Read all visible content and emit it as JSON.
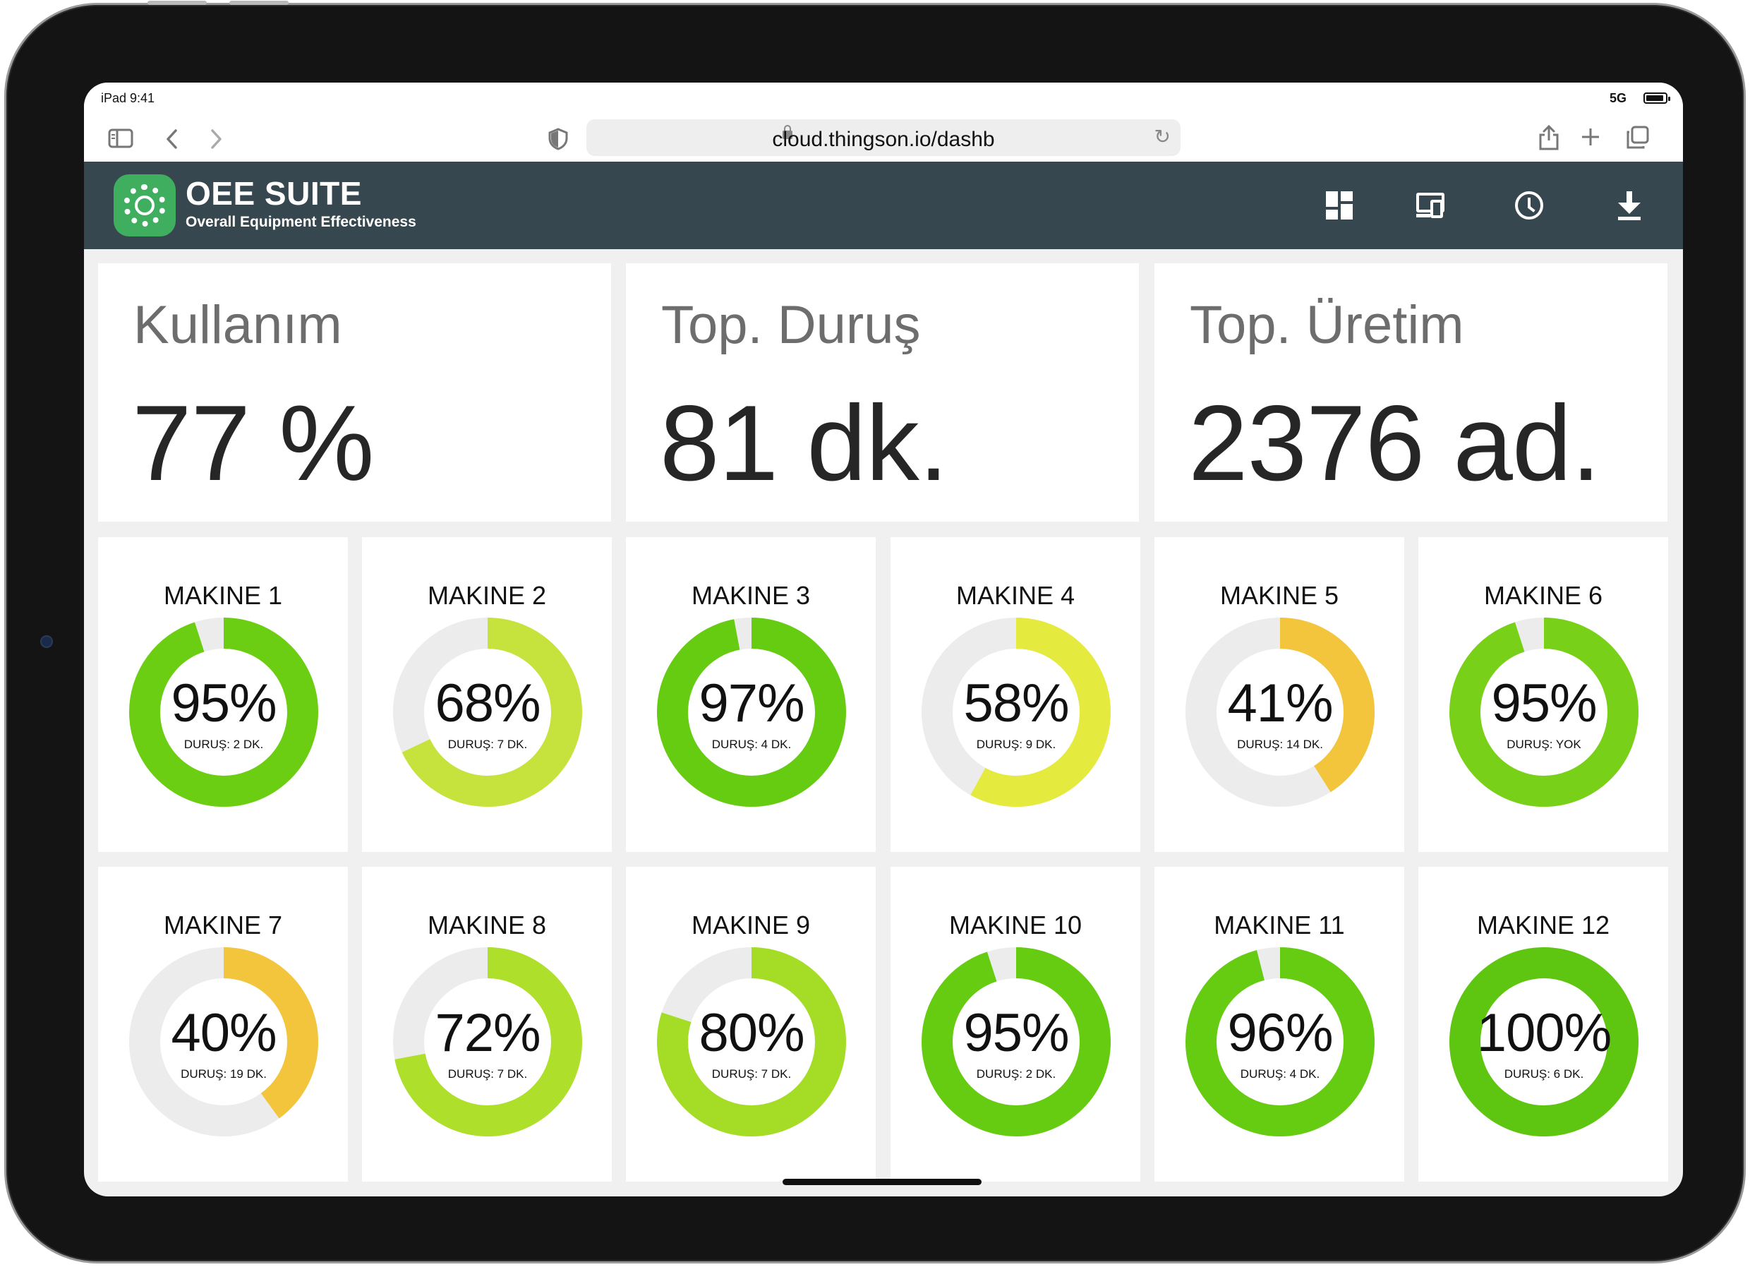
{
  "status_bar": {
    "time": "iPad 9:41",
    "signal": "5G"
  },
  "browser": {
    "url": "cloud.thingson.io/dashb",
    "icons": [
      "sidebar-icon",
      "back-icon",
      "forward-icon",
      "shield-icon",
      "lock-icon",
      "reload-icon",
      "share-icon",
      "new-tab-icon",
      "tabs-icon"
    ]
  },
  "app": {
    "title": "OEE SUITE",
    "subtitle": "Overall Equipment Effectiveness",
    "accent": "#37474f",
    "logo_color": "#3fae5f",
    "toolbar_icons": [
      "dashboard-icon",
      "devices-icon",
      "history-clock-icon",
      "download-icon"
    ]
  },
  "kpis": [
    {
      "label": "Kullanım",
      "value": "77 %"
    },
    {
      "label": "Top. Duruş",
      "value": "81 dk."
    },
    {
      "label": "Top. Üretim",
      "value": "2376 ad."
    }
  ],
  "machines": [
    {
      "name": "MAKINE 1",
      "pct_label": "95%",
      "value": 95,
      "downtime": "DURUŞ: 2 DK.",
      "color": "#6cce12"
    },
    {
      "name": "MAKINE 2",
      "pct_label": "68%",
      "value": 68,
      "downtime": "DURUŞ: 7 DK.",
      "color": "#c5e33c"
    },
    {
      "name": "MAKINE 3",
      "pct_label": "97%",
      "value": 97,
      "downtime": "DURUŞ: 4 DK.",
      "color": "#66cc12"
    },
    {
      "name": "MAKINE 4",
      "pct_label": "58%",
      "value": 58,
      "downtime": "DURUŞ: 9 DK.",
      "color": "#e5ea3e"
    },
    {
      "name": "MAKINE 5",
      "pct_label": "41%",
      "value": 41,
      "downtime": "DURUŞ: 14 DK.",
      "color": "#f2c53d"
    },
    {
      "name": "MAKINE 6",
      "pct_label": "95%",
      "value": 95,
      "downtime": "DURUŞ: YOK",
      "color": "#78d118"
    },
    {
      "name": "MAKINE 7",
      "pct_label": "40%",
      "value": 40,
      "downtime": "DURUŞ: 19 DK.",
      "color": "#f2c53d"
    },
    {
      "name": "MAKINE 8",
      "pct_label": "72%",
      "value": 72,
      "downtime": "DURUŞ: 7 DK.",
      "color": "#aedf2a"
    },
    {
      "name": "MAKINE 9",
      "pct_label": "80%",
      "value": 80,
      "downtime": "DURUŞ: 7 DK.",
      "color": "#a5dc26"
    },
    {
      "name": "MAKINE 10",
      "pct_label": "95%",
      "value": 95,
      "downtime": "DURUŞ: 2 DK.",
      "color": "#66cc12"
    },
    {
      "name": "MAKINE 11",
      "pct_label": "96%",
      "value": 96,
      "downtime": "DURUŞ: 4 DK.",
      "color": "#66cc12"
    },
    {
      "name": "MAKINE 12",
      "pct_label": "100%",
      "value": 100,
      "downtime": "DURUŞ: 6 DK.",
      "color": "#5ec610"
    }
  ],
  "gauge_track_color": "#ececec"
}
